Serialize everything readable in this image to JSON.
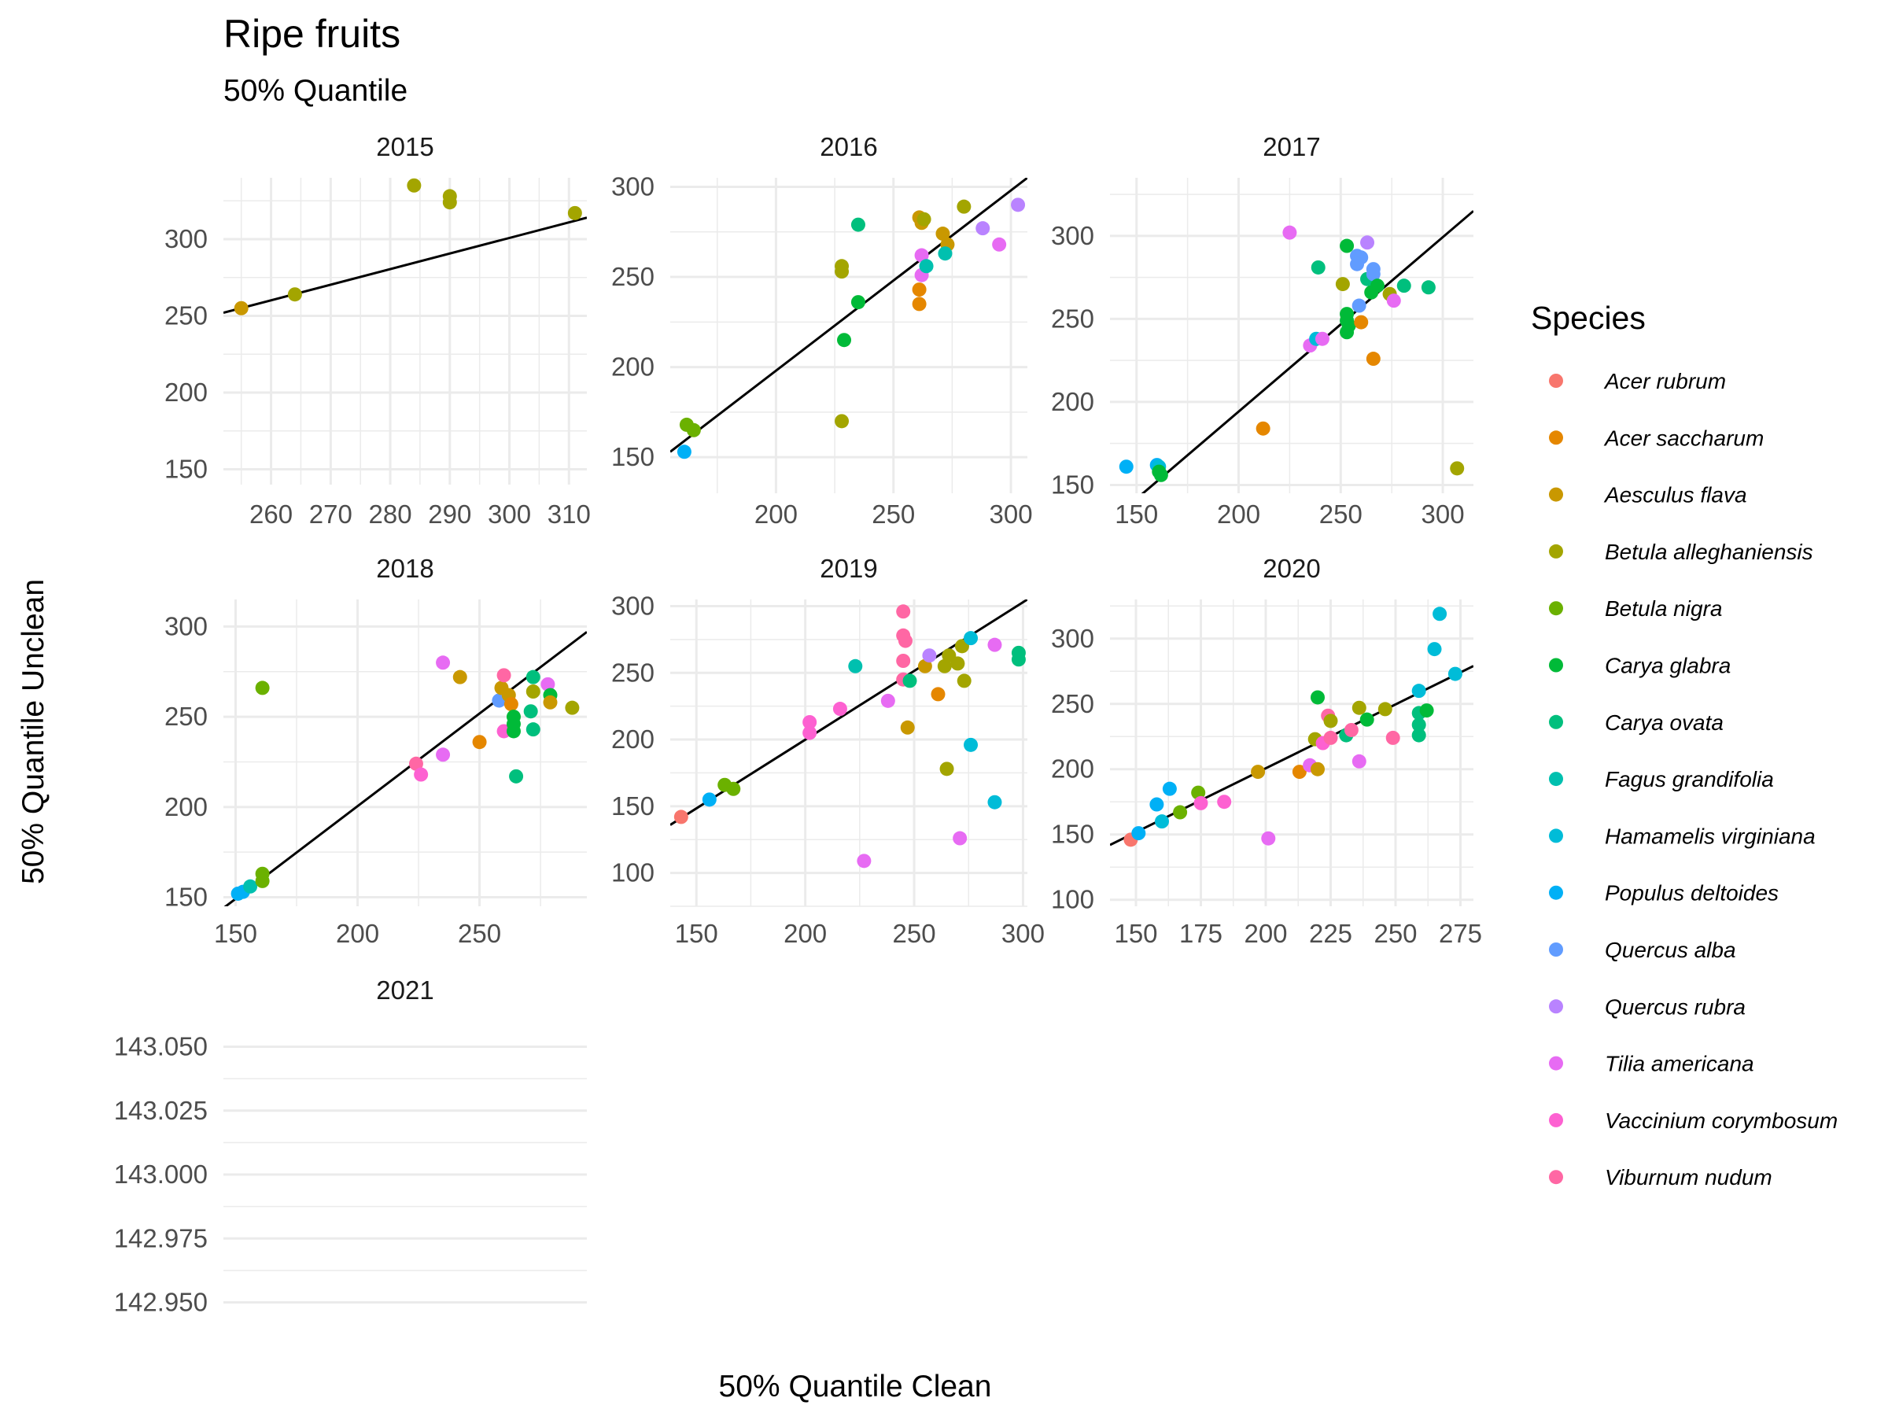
{
  "chart_data": {
    "type": "scatter",
    "title": "Ripe fruits",
    "subtitle": "50% Quantile",
    "xlabel": "50% Quantile Clean",
    "ylabel": "50% Quantile Unclean",
    "grid": true,
    "legend": {
      "title": "Species",
      "placement": "right",
      "entries": [
        {
          "name": "Acer rubrum",
          "color": "#F8766D"
        },
        {
          "name": "Acer saccharum",
          "color": "#E58700"
        },
        {
          "name": "Aesculus flava",
          "color": "#C99800"
        },
        {
          "name": "Betula alleghaniensis",
          "color": "#A3A500"
        },
        {
          "name": "Betula nigra",
          "color": "#6BB100"
        },
        {
          "name": "Carya glabra",
          "color": "#00BA38"
        },
        {
          "name": "Carya ovata",
          "color": "#00BF7D"
        },
        {
          "name": "Fagus grandifolia",
          "color": "#00C0AF"
        },
        {
          "name": "Hamamelis virginiana",
          "color": "#00BCD8"
        },
        {
          "name": "Populus deltoides",
          "color": "#00B0F6"
        },
        {
          "name": "Quercus alba",
          "color": "#619CFF"
        },
        {
          "name": "Quercus rubra",
          "color": "#B983FF"
        },
        {
          "name": "Tilia americana",
          "color": "#E76BF3"
        },
        {
          "name": "Vaccinium corymbosum",
          "color": "#FD61D1"
        },
        {
          "name": "Viburnum nudum",
          "color": "#FF67A4"
        }
      ]
    },
    "panels": [
      {
        "label": "2015",
        "xlim": [
          252,
          313
        ],
        "ylim": [
          140,
          340
        ],
        "xticks": [
          260,
          270,
          280,
          290,
          300,
          310
        ],
        "yticks": [
          150,
          200,
          250,
          300
        ],
        "fit": [
          [
            252,
            252
          ],
          [
            313,
            314
          ]
        ],
        "points": [
          {
            "x": 255,
            "y": 255,
            "s": 2
          },
          {
            "x": 264,
            "y": 264,
            "s": 3
          },
          {
            "x": 284,
            "y": 335,
            "s": 3
          },
          {
            "x": 290,
            "y": 328,
            "s": 3
          },
          {
            "x": 290,
            "y": 324,
            "s": 3
          },
          {
            "x": 311,
            "y": 317,
            "s": 3
          }
        ]
      },
      {
        "label": "2016",
        "xlim": [
          155,
          307
        ],
        "ylim": [
          130,
          305
        ],
        "xticks": [
          200,
          250,
          300
        ],
        "yticks": [
          150,
          200,
          250,
          300
        ],
        "fit": [
          [
            155,
            153
          ],
          [
            307,
            305
          ]
        ],
        "points": [
          {
            "x": 162,
            "y": 168,
            "s": 4
          },
          {
            "x": 165,
            "y": 165,
            "s": 4
          },
          {
            "x": 161,
            "y": 153,
            "s": 9
          },
          {
            "x": 228,
            "y": 256,
            "s": 3
          },
          {
            "x": 228,
            "y": 253,
            "s": 3
          },
          {
            "x": 228,
            "y": 170,
            "s": 3
          },
          {
            "x": 229,
            "y": 215,
            "s": 5
          },
          {
            "x": 235,
            "y": 236,
            "s": 5
          },
          {
            "x": 235,
            "y": 279,
            "s": 6
          },
          {
            "x": 261,
            "y": 283,
            "s": 2
          },
          {
            "x": 262,
            "y": 280,
            "s": 2
          },
          {
            "x": 263,
            "y": 282,
            "s": 3
          },
          {
            "x": 261,
            "y": 243,
            "s": 1
          },
          {
            "x": 261,
            "y": 235,
            "s": 1
          },
          {
            "x": 262,
            "y": 262,
            "s": 12
          },
          {
            "x": 262,
            "y": 251,
            "s": 12
          },
          {
            "x": 264,
            "y": 256,
            "s": 7
          },
          {
            "x": 271,
            "y": 274,
            "s": 2
          },
          {
            "x": 273,
            "y": 268,
            "s": 2
          },
          {
            "x": 272,
            "y": 263,
            "s": 7
          },
          {
            "x": 280,
            "y": 289,
            "s": 3
          },
          {
            "x": 288,
            "y": 277,
            "s": 11
          },
          {
            "x": 295,
            "y": 268,
            "s": 12
          },
          {
            "x": 303,
            "y": 290,
            "s": 11
          }
        ]
      },
      {
        "label": "2017",
        "xlim": [
          137,
          315
        ],
        "ylim": [
          145,
          335
        ],
        "xticks": [
          150,
          200,
          250,
          300
        ],
        "yticks": [
          150,
          200,
          250,
          300
        ],
        "fit": [
          [
            137,
            128
          ],
          [
            315,
            315
          ]
        ],
        "points": [
          {
            "x": 145,
            "y": 161,
            "s": 9
          },
          {
            "x": 160,
            "y": 162,
            "s": 9
          },
          {
            "x": 161,
            "y": 161,
            "s": 8
          },
          {
            "x": 162,
            "y": 156,
            "s": 5
          },
          {
            "x": 161,
            "y": 158,
            "s": 5
          },
          {
            "x": 212,
            "y": 184,
            "s": 1
          },
          {
            "x": 225,
            "y": 302,
            "s": 12
          },
          {
            "x": 235,
            "y": 234,
            "s": 12
          },
          {
            "x": 238,
            "y": 238,
            "s": 8
          },
          {
            "x": 241,
            "y": 238,
            "s": 12
          },
          {
            "x": 239,
            "y": 281,
            "s": 6
          },
          {
            "x": 251,
            "y": 271,
            "s": 3
          },
          {
            "x": 253,
            "y": 294,
            "s": 5
          },
          {
            "x": 253,
            "y": 253,
            "s": 5
          },
          {
            "x": 253,
            "y": 249,
            "s": 5
          },
          {
            "x": 254,
            "y": 246,
            "s": 5
          },
          {
            "x": 253,
            "y": 242,
            "s": 5
          },
          {
            "x": 258,
            "y": 288,
            "s": 10
          },
          {
            "x": 260,
            "y": 287,
            "s": 10
          },
          {
            "x": 258,
            "y": 283,
            "s": 10
          },
          {
            "x": 260,
            "y": 248,
            "s": 1
          },
          {
            "x": 259,
            "y": 258,
            "s": 10
          },
          {
            "x": 263,
            "y": 296,
            "s": 11
          },
          {
            "x": 263,
            "y": 274,
            "s": 6
          },
          {
            "x": 266,
            "y": 280,
            "s": 10
          },
          {
            "x": 266,
            "y": 277,
            "s": 10
          },
          {
            "x": 265,
            "y": 266,
            "s": 5
          },
          {
            "x": 268,
            "y": 270,
            "s": 5
          },
          {
            "x": 266,
            "y": 226,
            "s": 1
          },
          {
            "x": 274,
            "y": 265,
            "s": 3
          },
          {
            "x": 276,
            "y": 261,
            "s": 12
          },
          {
            "x": 281,
            "y": 270,
            "s": 6
          },
          {
            "x": 293,
            "y": 269,
            "s": 6
          },
          {
            "x": 307,
            "y": 160,
            "s": 3
          }
        ]
      },
      {
        "label": "2018",
        "xlim": [
          145,
          294
        ],
        "ylim": [
          145,
          315
        ],
        "xticks": [
          150,
          200,
          250
        ],
        "yticks": [
          150,
          200,
          250,
          300
        ],
        "fit": [
          [
            145,
            144
          ],
          [
            294,
            297
          ]
        ],
        "points": [
          {
            "x": 151,
            "y": 152,
            "s": 9
          },
          {
            "x": 153,
            "y": 153,
            "s": 9
          },
          {
            "x": 156,
            "y": 156,
            "s": 7
          },
          {
            "x": 161,
            "y": 163,
            "s": 4
          },
          {
            "x": 161,
            "y": 159,
            "s": 4
          },
          {
            "x": 161,
            "y": 266,
            "s": 4
          },
          {
            "x": 224,
            "y": 224,
            "s": 14
          },
          {
            "x": 226,
            "y": 218,
            "s": 13
          },
          {
            "x": 235,
            "y": 280,
            "s": 12
          },
          {
            "x": 235,
            "y": 229,
            "s": 12
          },
          {
            "x": 242,
            "y": 272,
            "s": 2
          },
          {
            "x": 250,
            "y": 236,
            "s": 1
          },
          {
            "x": 258,
            "y": 259,
            "s": 10
          },
          {
            "x": 259,
            "y": 266,
            "s": 2
          },
          {
            "x": 260,
            "y": 273,
            "s": 14
          },
          {
            "x": 260,
            "y": 242,
            "s": 13
          },
          {
            "x": 262,
            "y": 262,
            "s": 2
          },
          {
            "x": 263,
            "y": 257,
            "s": 1
          },
          {
            "x": 264,
            "y": 250,
            "s": 5
          },
          {
            "x": 264,
            "y": 246,
            "s": 5
          },
          {
            "x": 264,
            "y": 242,
            "s": 5
          },
          {
            "x": 265,
            "y": 217,
            "s": 6
          },
          {
            "x": 272,
            "y": 272,
            "s": 6
          },
          {
            "x": 271,
            "y": 253,
            "s": 6
          },
          {
            "x": 272,
            "y": 243,
            "s": 6
          },
          {
            "x": 272,
            "y": 264,
            "s": 3
          },
          {
            "x": 278,
            "y": 268,
            "s": 12
          },
          {
            "x": 279,
            "y": 262,
            "s": 5
          },
          {
            "x": 279,
            "y": 258,
            "s": 2
          },
          {
            "x": 288,
            "y": 255,
            "s": 3
          }
        ]
      },
      {
        "label": "2019",
        "xlim": [
          138,
          302
        ],
        "ylim": [
          75,
          305
        ],
        "xticks": [
          150,
          200,
          250,
          300
        ],
        "yticks": [
          100,
          150,
          200,
          250,
          300
        ],
        "fit": [
          [
            138,
            136
          ],
          [
            302,
            305
          ]
        ],
        "points": [
          {
            "x": 143,
            "y": 142,
            "s": 0
          },
          {
            "x": 156,
            "y": 155,
            "s": 9
          },
          {
            "x": 163,
            "y": 166,
            "s": 4
          },
          {
            "x": 167,
            "y": 163,
            "s": 4
          },
          {
            "x": 202,
            "y": 213,
            "s": 13
          },
          {
            "x": 202,
            "y": 205,
            "s": 13
          },
          {
            "x": 216,
            "y": 223,
            "s": 13
          },
          {
            "x": 223,
            "y": 255,
            "s": 7
          },
          {
            "x": 227,
            "y": 109,
            "s": 12
          },
          {
            "x": 238,
            "y": 229,
            "s": 12
          },
          {
            "x": 245,
            "y": 296,
            "s": 14
          },
          {
            "x": 245,
            "y": 278,
            "s": 14
          },
          {
            "x": 246,
            "y": 274,
            "s": 14
          },
          {
            "x": 245,
            "y": 259,
            "s": 14
          },
          {
            "x": 245,
            "y": 245,
            "s": 14
          },
          {
            "x": 248,
            "y": 244,
            "s": 6
          },
          {
            "x": 247,
            "y": 209,
            "s": 2
          },
          {
            "x": 255,
            "y": 255,
            "s": 2
          },
          {
            "x": 257,
            "y": 263,
            "s": 11
          },
          {
            "x": 261,
            "y": 234,
            "s": 1
          },
          {
            "x": 264,
            "y": 255,
            "s": 3
          },
          {
            "x": 266,
            "y": 263,
            "s": 3
          },
          {
            "x": 265,
            "y": 178,
            "s": 3
          },
          {
            "x": 270,
            "y": 257,
            "s": 3
          },
          {
            "x": 272,
            "y": 270,
            "s": 3
          },
          {
            "x": 271,
            "y": 126,
            "s": 12
          },
          {
            "x": 273,
            "y": 244,
            "s": 3
          },
          {
            "x": 276,
            "y": 276,
            "s": 8
          },
          {
            "x": 276,
            "y": 196,
            "s": 8
          },
          {
            "x": 287,
            "y": 271,
            "s": 12
          },
          {
            "x": 287,
            "y": 153,
            "s": 8
          },
          {
            "x": 298,
            "y": 265,
            "s": 6
          },
          {
            "x": 298,
            "y": 260,
            "s": 6
          }
        ]
      },
      {
        "label": "2020",
        "xlim": [
          140,
          280
        ],
        "ylim": [
          95,
          330
        ],
        "xticks": [
          150,
          175,
          200,
          225,
          250,
          275
        ],
        "yticks": [
          100,
          150,
          200,
          250,
          300
        ],
        "fit": [
          [
            140,
            142
          ],
          [
            280,
            279
          ]
        ],
        "points": [
          {
            "x": 148,
            "y": 146,
            "s": 0
          },
          {
            "x": 151,
            "y": 151,
            "s": 9
          },
          {
            "x": 158,
            "y": 173,
            "s": 9
          },
          {
            "x": 160,
            "y": 160,
            "s": 8
          },
          {
            "x": 163,
            "y": 185,
            "s": 9
          },
          {
            "x": 167,
            "y": 167,
            "s": 4
          },
          {
            "x": 174,
            "y": 182,
            "s": 4
          },
          {
            "x": 175,
            "y": 174,
            "s": 13
          },
          {
            "x": 184,
            "y": 175,
            "s": 13
          },
          {
            "x": 197,
            "y": 198,
            "s": 2
          },
          {
            "x": 201,
            "y": 147,
            "s": 12
          },
          {
            "x": 213,
            "y": 198,
            "s": 1
          },
          {
            "x": 217,
            "y": 203,
            "s": 12
          },
          {
            "x": 219,
            "y": 223,
            "s": 3
          },
          {
            "x": 220,
            "y": 200,
            "s": 2
          },
          {
            "x": 220,
            "y": 255,
            "s": 5
          },
          {
            "x": 222,
            "y": 220,
            "s": 13
          },
          {
            "x": 224,
            "y": 241,
            "s": 14
          },
          {
            "x": 225,
            "y": 237,
            "s": 3
          },
          {
            "x": 225,
            "y": 224,
            "s": 14
          },
          {
            "x": 231,
            "y": 226,
            "s": 6
          },
          {
            "x": 233,
            "y": 230,
            "s": 14
          },
          {
            "x": 236,
            "y": 247,
            "s": 3
          },
          {
            "x": 236,
            "y": 206,
            "s": 12
          },
          {
            "x": 239,
            "y": 238,
            "s": 5
          },
          {
            "x": 246,
            "y": 246,
            "s": 3
          },
          {
            "x": 249,
            "y": 224,
            "s": 14
          },
          {
            "x": 259,
            "y": 260,
            "s": 8
          },
          {
            "x": 259,
            "y": 243,
            "s": 6
          },
          {
            "x": 259,
            "y": 234,
            "s": 6
          },
          {
            "x": 259,
            "y": 226,
            "s": 6
          },
          {
            "x": 262,
            "y": 245,
            "s": 5
          },
          {
            "x": 265,
            "y": 292,
            "s": 8
          },
          {
            "x": 267,
            "y": 319,
            "s": 8
          },
          {
            "x": 273,
            "y": 273,
            "s": 8
          }
        ]
      },
      {
        "label": "2021",
        "xlim": [
          0,
          1
        ],
        "ylim": [
          142.94,
          143.06
        ],
        "xticks": [],
        "yticks": [
          142.95,
          142.975,
          143.0,
          143.025,
          143.05
        ],
        "yticklabels": [
          "142.950",
          "142.975",
          "143.000",
          "143.025",
          "143.050"
        ],
        "fit": null,
        "points": []
      }
    ]
  }
}
